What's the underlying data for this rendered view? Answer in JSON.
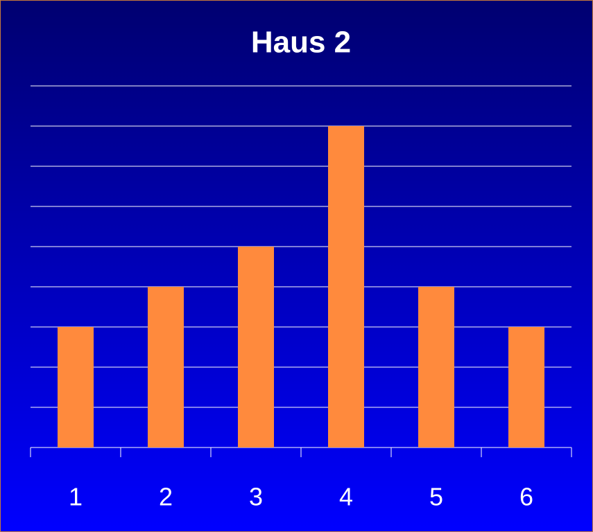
{
  "chart_data": {
    "type": "bar",
    "title": "Haus 2",
    "categories": [
      "1",
      "2",
      "3",
      "4",
      "5",
      "6"
    ],
    "values": [
      3,
      4,
      5,
      8,
      4,
      3
    ],
    "color": "#ff8a3d",
    "ylim": [
      0,
      9
    ],
    "yticks": [
      0,
      1,
      2,
      3,
      4,
      5,
      6,
      7,
      8,
      9
    ],
    "grid": true
  }
}
